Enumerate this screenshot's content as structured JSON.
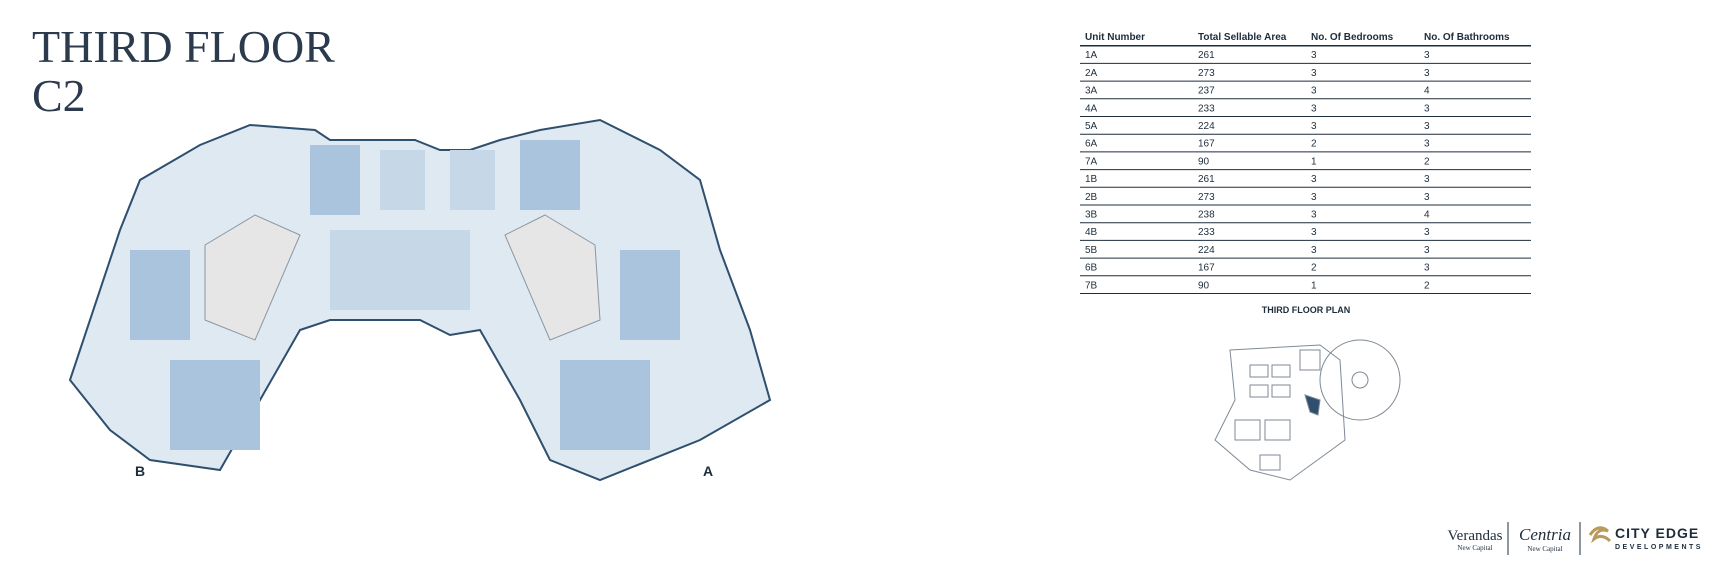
{
  "header": {
    "title": "THIRD FLOOR",
    "subtitle": "C2"
  },
  "plan": {
    "left_label": "B",
    "right_label": "A"
  },
  "table": {
    "headers": [
      "Unit Number",
      "Total Sellable Area",
      "No. Of Bedrooms",
      "No. Of Bathrooms"
    ],
    "rows": [
      [
        "1A",
        "261",
        "3",
        "3"
      ],
      [
        "2A",
        "273",
        "3",
        "3"
      ],
      [
        "3A",
        "237",
        "3",
        "4"
      ],
      [
        "4A",
        "233",
        "3",
        "3"
      ],
      [
        "5A",
        "224",
        "3",
        "3"
      ],
      [
        "6A",
        "167",
        "2",
        "3"
      ],
      [
        "7A",
        "90",
        "1",
        "2"
      ],
      [
        "1B",
        "261",
        "3",
        "3"
      ],
      [
        "2B",
        "273",
        "3",
        "3"
      ],
      [
        "3B",
        "238",
        "3",
        "4"
      ],
      [
        "4B",
        "233",
        "3",
        "3"
      ],
      [
        "5B",
        "224",
        "3",
        "3"
      ],
      [
        "6B",
        "167",
        "2",
        "3"
      ],
      [
        "7B",
        "90",
        "1",
        "2"
      ]
    ]
  },
  "site_plan": {
    "title": "THIRD FLOOR PLAN"
  },
  "footer": {
    "logo1": "Verandas",
    "logo1_sub": "New Capital",
    "logo2": "Centria",
    "logo2_sub": "New Capital",
    "logo3": "CITY EDGE",
    "logo3_sub": "DEVELOPMENTS"
  }
}
